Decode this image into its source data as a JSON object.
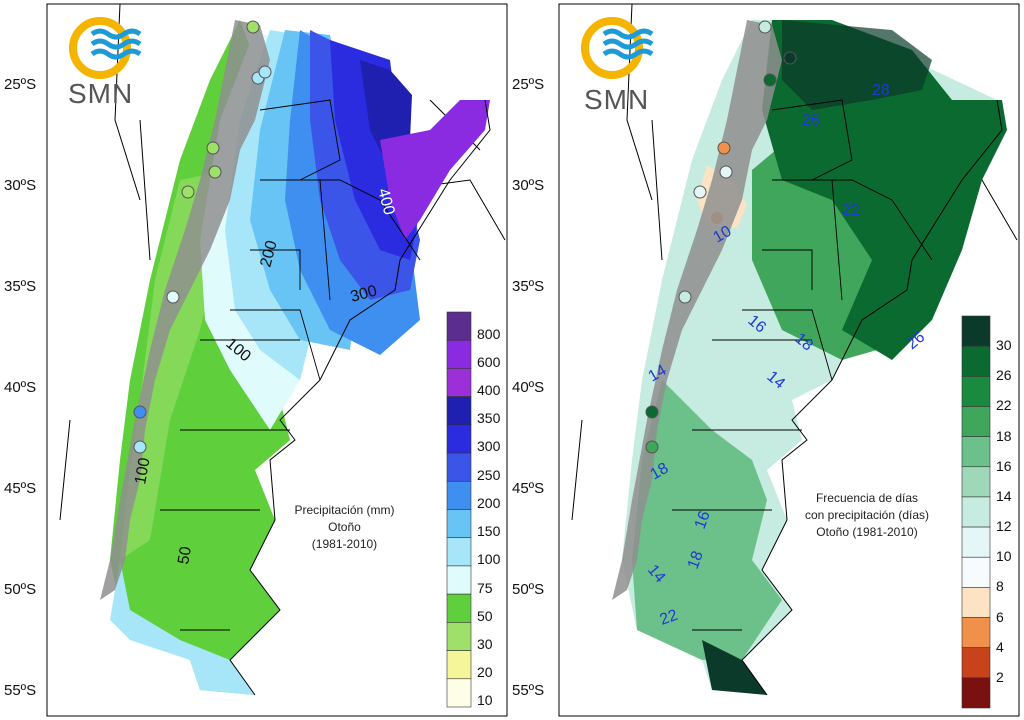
{
  "left_map": {
    "logo_text": "SMN",
    "title_line1": "Precipitación (mm)",
    "title_line2": "Otoño",
    "title_line3": "(1981-2010)",
    "lat_labels": [
      "25ºS",
      "30ºS",
      "35ºS",
      "40ºS",
      "45ºS",
      "50ºS",
      "55ºS"
    ],
    "legend": [
      "800",
      "600",
      "400",
      "350",
      "300",
      "250",
      "200",
      "150",
      "100",
      "75",
      "50",
      "30",
      "20",
      "10"
    ],
    "legend_colors": [
      "#5b2d8e",
      "#8a2be2",
      "#9b30d8",
      "#1f1fb0",
      "#2b2bdf",
      "#3b55e8",
      "#3f8ff0",
      "#68c4f4",
      "#a6e6f8",
      "#e0fbfb",
      "#5fcf3c",
      "#9ee06a",
      "#f5f59a",
      "#fdfde8"
    ],
    "contour_labels": [
      "400",
      "200",
      "300",
      "100",
      "100",
      "50"
    ]
  },
  "right_map": {
    "logo_text": "SMN",
    "title_line1": "Frecuencia de días",
    "title_line2": "con precipitación (días)",
    "title_line3": "Otoño (1981-2010)",
    "lat_labels": [
      "25ºS",
      "30ºS",
      "35ºS",
      "40ºS",
      "45ºS",
      "50ºS",
      "55ºS"
    ],
    "legend": [
      "30",
      "26",
      "22",
      "18",
      "16",
      "14",
      "12",
      "10",
      "8",
      "6",
      "4",
      "2"
    ],
    "legend_colors": [
      "#0c3a2a",
      "#0b6a30",
      "#1a8a3e",
      "#3fa65c",
      "#6cc08a",
      "#9fd8b8",
      "#c6ebe0",
      "#e4f6f6",
      "#f7fbfd",
      "#fbe3c3",
      "#f0904a",
      "#c8421c",
      "#7a1010"
    ],
    "contour_labels": [
      "28",
      "26",
      "22",
      "10",
      "16",
      "18",
      "14",
      "14",
      "18",
      "18",
      "16",
      "14",
      "22",
      "26"
    ]
  }
}
